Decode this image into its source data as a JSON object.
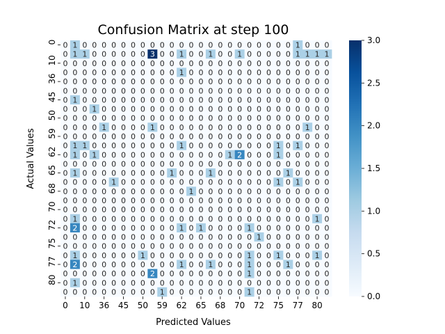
{
  "chart_data": {
    "type": "heatmap",
    "title": "Confusion Matrix at step 100",
    "xlabel": "Predicted Values",
    "ylabel": "Actual Values",
    "xticklabels": [
      "0",
      "10",
      "36",
      "45",
      "50",
      "59",
      "62",
      "65",
      "68",
      "70",
      "72",
      "75",
      "77",
      "80"
    ],
    "yticklabels": [
      "0",
      "10",
      "36",
      "45",
      "50",
      "59",
      "62",
      "65",
      "68",
      "70",
      "72",
      "75",
      "77",
      "80"
    ],
    "colorbar": {
      "min": 0.0,
      "max": 3.0,
      "ticks": [
        "0.0",
        "0.5",
        "1.0",
        "1.5",
        "2.0",
        "2.5",
        "3.0"
      ]
    },
    "colormap": {
      "low": "#f7fbff",
      "high": "#08306b"
    },
    "matrix": [
      [
        0,
        1,
        0,
        0,
        0,
        0,
        0,
        0,
        0,
        0,
        0,
        0,
        0,
        0,
        0,
        0,
        0,
        0,
        0,
        0,
        0,
        0,
        0,
        0,
        1,
        0,
        0,
        0
      ],
      [
        0,
        1,
        1,
        0,
        0,
        0,
        0,
        0,
        0,
        3,
        0,
        0,
        1,
        0,
        0,
        1,
        0,
        0,
        1,
        0,
        0,
        0,
        0,
        0,
        1,
        1,
        1,
        1
      ],
      [
        0,
        0,
        0,
        0,
        0,
        0,
        0,
        0,
        0,
        0,
        0,
        0,
        0,
        0,
        0,
        0,
        0,
        0,
        0,
        0,
        0,
        0,
        0,
        0,
        0,
        0,
        0,
        0
      ],
      [
        0,
        0,
        0,
        0,
        0,
        0,
        0,
        0,
        0,
        0,
        0,
        0,
        1,
        0,
        0,
        0,
        0,
        0,
        0,
        0,
        0,
        0,
        0,
        0,
        0,
        0,
        0,
        0
      ],
      [
        0,
        0,
        0,
        0,
        0,
        0,
        0,
        0,
        0,
        0,
        0,
        0,
        0,
        0,
        0,
        0,
        0,
        0,
        0,
        0,
        0,
        0,
        0,
        0,
        0,
        0,
        0,
        0
      ],
      [
        0,
        0,
        0,
        0,
        0,
        0,
        0,
        0,
        0,
        0,
        0,
        0,
        0,
        0,
        0,
        0,
        0,
        0,
        0,
        0,
        0,
        0,
        0,
        0,
        0,
        0,
        0,
        0
      ],
      [
        0,
        1,
        0,
        0,
        0,
        0,
        0,
        0,
        0,
        0,
        0,
        0,
        0,
        0,
        0,
        0,
        0,
        0,
        0,
        0,
        0,
        0,
        0,
        0,
        0,
        0,
        0,
        0
      ],
      [
        0,
        0,
        0,
        1,
        0,
        0,
        0,
        0,
        0,
        0,
        0,
        0,
        0,
        0,
        0,
        0,
        0,
        0,
        0,
        0,
        0,
        0,
        0,
        0,
        0,
        0,
        0,
        0
      ],
      [
        0,
        0,
        0,
        0,
        0,
        0,
        0,
        0,
        0,
        0,
        0,
        0,
        0,
        0,
        0,
        0,
        0,
        0,
        0,
        0,
        0,
        0,
        0,
        0,
        0,
        0,
        0,
        0
      ],
      [
        0,
        0,
        0,
        0,
        1,
        0,
        0,
        0,
        0,
        1,
        0,
        0,
        0,
        0,
        0,
        0,
        0,
        0,
        0,
        0,
        0,
        0,
        0,
        0,
        0,
        1,
        0,
        0
      ],
      [
        0,
        0,
        0,
        0,
        0,
        0,
        0,
        0,
        0,
        0,
        0,
        0,
        0,
        0,
        0,
        0,
        0,
        0,
        0,
        0,
        0,
        0,
        0,
        0,
        0,
        0,
        0,
        0
      ],
      [
        0,
        1,
        1,
        0,
        0,
        0,
        0,
        0,
        0,
        0,
        0,
        0,
        1,
        0,
        0,
        0,
        0,
        0,
        0,
        0,
        0,
        0,
        1,
        0,
        1,
        0,
        0,
        0
      ],
      [
        0,
        1,
        0,
        1,
        0,
        0,
        0,
        0,
        0,
        0,
        0,
        0,
        0,
        0,
        0,
        0,
        0,
        1,
        2,
        0,
        0,
        0,
        1,
        0,
        0,
        0,
        0,
        0
      ],
      [
        0,
        0,
        0,
        0,
        0,
        0,
        0,
        0,
        0,
        0,
        0,
        0,
        0,
        0,
        0,
        0,
        0,
        0,
        0,
        0,
        0,
        0,
        0,
        0,
        0,
        0,
        0,
        0
      ],
      [
        0,
        1,
        0,
        0,
        0,
        0,
        0,
        0,
        0,
        0,
        0,
        1,
        0,
        0,
        0,
        1,
        0,
        0,
        0,
        0,
        0,
        0,
        0,
        1,
        0,
        0,
        0,
        0
      ],
      [
        0,
        0,
        0,
        0,
        0,
        1,
        0,
        0,
        0,
        0,
        0,
        0,
        0,
        0,
        0,
        0,
        0,
        0,
        0,
        0,
        0,
        0,
        1,
        0,
        1,
        0,
        0,
        0
      ],
      [
        0,
        0,
        0,
        0,
        0,
        0,
        0,
        0,
        0,
        0,
        0,
        0,
        0,
        1,
        0,
        0,
        0,
        0,
        0,
        0,
        0,
        0,
        0,
        0,
        0,
        0,
        0,
        0
      ],
      [
        0,
        0,
        0,
        0,
        0,
        0,
        0,
        0,
        0,
        0,
        0,
        0,
        0,
        0,
        0,
        0,
        0,
        0,
        0,
        0,
        0,
        0,
        0,
        0,
        0,
        0,
        0,
        0
      ],
      [
        0,
        0,
        0,
        0,
        0,
        0,
        0,
        0,
        0,
        0,
        0,
        0,
        0,
        0,
        0,
        0,
        0,
        0,
        0,
        0,
        0,
        0,
        0,
        0,
        0,
        0,
        0,
        0
      ],
      [
        0,
        1,
        0,
        0,
        0,
        0,
        0,
        0,
        0,
        0,
        0,
        0,
        0,
        0,
        0,
        0,
        0,
        0,
        0,
        0,
        0,
        0,
        0,
        0,
        0,
        0,
        1,
        0
      ],
      [
        0,
        2,
        0,
        0,
        0,
        0,
        0,
        0,
        0,
        0,
        0,
        0,
        1,
        0,
        1,
        0,
        0,
        0,
        0,
        1,
        0,
        0,
        0,
        0,
        0,
        0,
        0,
        0
      ],
      [
        0,
        0,
        0,
        0,
        0,
        0,
        0,
        0,
        0,
        0,
        0,
        0,
        0,
        0,
        0,
        0,
        0,
        0,
        0,
        0,
        1,
        0,
        0,
        0,
        0,
        0,
        0,
        0
      ],
      [
        0,
        0,
        0,
        0,
        0,
        0,
        0,
        0,
        0,
        0,
        0,
        0,
        0,
        0,
        0,
        0,
        0,
        0,
        0,
        0,
        0,
        0,
        0,
        0,
        0,
        0,
        0,
        0
      ],
      [
        0,
        1,
        0,
        0,
        0,
        0,
        0,
        0,
        1,
        0,
        0,
        0,
        0,
        0,
        0,
        0,
        0,
        0,
        0,
        1,
        0,
        0,
        1,
        0,
        0,
        0,
        1,
        0
      ],
      [
        0,
        2,
        0,
        0,
        0,
        0,
        0,
        0,
        0,
        0,
        0,
        0,
        1,
        0,
        0,
        1,
        0,
        0,
        0,
        1,
        0,
        0,
        0,
        1,
        0,
        0,
        0,
        0
      ],
      [
        0,
        0,
        0,
        0,
        0,
        0,
        0,
        0,
        0,
        2,
        0,
        0,
        0,
        0,
        0,
        0,
        0,
        0,
        0,
        1,
        0,
        0,
        0,
        0,
        0,
        0,
        0,
        0
      ],
      [
        0,
        1,
        0,
        0,
        0,
        0,
        0,
        0,
        0,
        0,
        0,
        0,
        0,
        0,
        0,
        0,
        0,
        0,
        0,
        0,
        0,
        0,
        0,
        0,
        0,
        0,
        0,
        0
      ],
      [
        0,
        0,
        0,
        0,
        0,
        0,
        0,
        0,
        0,
        0,
        1,
        0,
        0,
        0,
        0,
        0,
        0,
        0,
        0,
        1,
        0,
        0,
        0,
        0,
        0,
        0,
        0,
        0
      ]
    ]
  }
}
